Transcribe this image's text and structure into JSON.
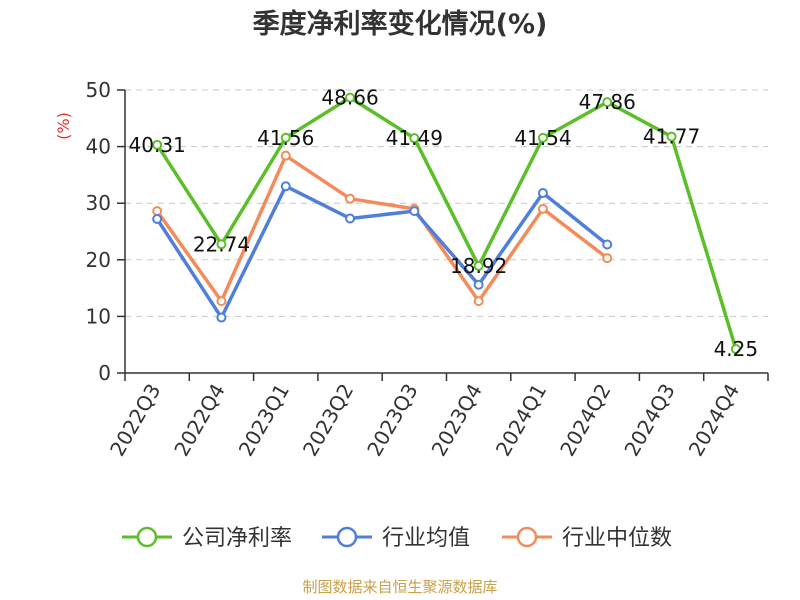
{
  "chart_data": {
    "type": "line",
    "title": "季度净利率变化情况(%)",
    "ylabel": "(%)",
    "xlabel": "",
    "ylim": [
      0,
      50
    ],
    "yticks": [
      0,
      10,
      20,
      30,
      40,
      50
    ],
    "grid": true,
    "legend_position": "bottom",
    "categories": [
      "2022Q3",
      "2022Q4",
      "2023Q1",
      "2023Q2",
      "2023Q3",
      "2023Q4",
      "2024Q1",
      "2024Q2",
      "2024Q3",
      "2024Q4"
    ],
    "series": [
      {
        "name": "公司净利率",
        "color": "#5cbf2a",
        "values": [
          40.31,
          22.74,
          41.56,
          48.66,
          41.49,
          18.92,
          41.54,
          47.86,
          41.77,
          4.25
        ],
        "data_labels": [
          "40.31",
          "22.74",
          "41.56",
          "48.66",
          "41.49",
          "18.92",
          "41.54",
          "47.86",
          "41.77",
          "4.25"
        ]
      },
      {
        "name": "行业均值",
        "color": "#4f7fdb",
        "values": [
          27.2,
          9.8,
          33.0,
          27.3,
          28.6,
          15.6,
          31.8,
          22.7,
          null,
          null
        ]
      },
      {
        "name": "行业中位数",
        "color": "#f38b5a",
        "values": [
          28.6,
          12.7,
          38.4,
          30.8,
          29.0,
          12.7,
          29.0,
          20.3,
          null,
          null
        ]
      }
    ]
  },
  "footer": {
    "source": "制图数据来自恒生聚源数据库"
  }
}
